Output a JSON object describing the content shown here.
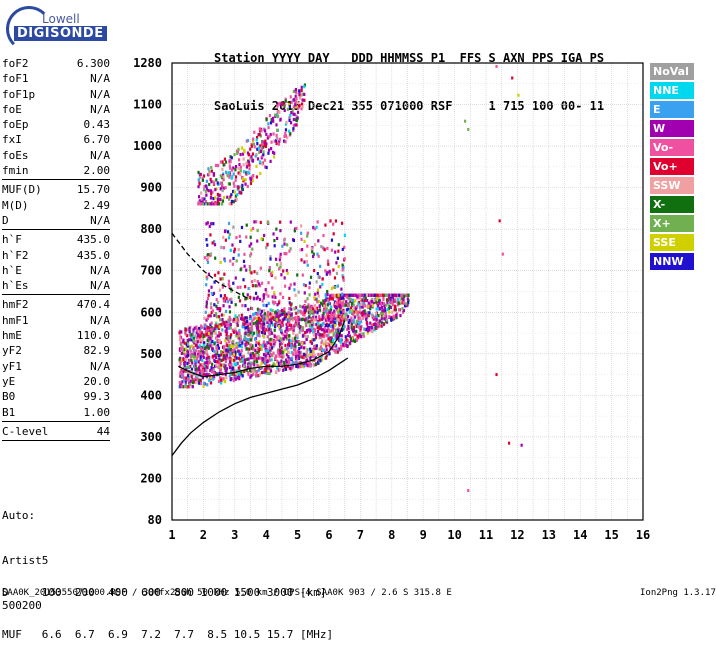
{
  "logo": {
    "line1": "Lowell",
    "line2": "DIGISONDE"
  },
  "header": {
    "labels": "Station YYYY DAY   DDD HHMMSS P1  FFS S AXN PPS IGA PS",
    "values": "SaoLuis 2015 Dec21 355 071000 RSF     1 715 100 00- 11"
  },
  "params": [
    {
      "name": "foF2",
      "value": "6.300"
    },
    {
      "name": "foF1",
      "value": "N/A"
    },
    {
      "name": "foF1p",
      "value": "N/A"
    },
    {
      "name": "foE",
      "value": "N/A"
    },
    {
      "name": "foEp",
      "value": "0.43"
    },
    {
      "name": "fxI",
      "value": "6.70"
    },
    {
      "name": "foEs",
      "value": "N/A"
    },
    {
      "name": "fmin",
      "value": "2.00"
    },
    {
      "sep": true
    },
    {
      "name": "MUF(D)",
      "value": "15.70"
    },
    {
      "name": "M(D)",
      "value": "2.49"
    },
    {
      "name": "D",
      "value": "N/A"
    },
    {
      "sep": true
    },
    {
      "name": "h`F",
      "value": "435.0"
    },
    {
      "name": "h`F2",
      "value": "435.0"
    },
    {
      "name": "h`E",
      "value": "N/A"
    },
    {
      "name": "h`Es",
      "value": "N/A"
    },
    {
      "sep": true
    },
    {
      "name": "hmF2",
      "value": "470.4"
    },
    {
      "name": "hmF1",
      "value": "N/A"
    },
    {
      "name": "hmE",
      "value": "110.0"
    },
    {
      "name": "yF2",
      "value": "82.9"
    },
    {
      "name": "yF1",
      "value": "N/A"
    },
    {
      "name": "yE",
      "value": "20.0"
    },
    {
      "name": "B0",
      "value": "99.3"
    },
    {
      "name": "B1",
      "value": "1.00"
    },
    {
      "sep": true
    },
    {
      "name": "C-level",
      "value": "44"
    },
    {
      "sep": true
    }
  ],
  "auto": {
    "line1": "Auto:",
    "line2": "Artist5",
    "line3": "500200"
  },
  "legend": [
    {
      "label": "NoVal",
      "color": "#a0a0a0"
    },
    {
      "label": "NNE",
      "color": "#00d8f0"
    },
    {
      "label": "E",
      "color": "#3aa0f0"
    },
    {
      "label": "W",
      "color": "#a000b0"
    },
    {
      "label": "Vo-",
      "color": "#f050a0"
    },
    {
      "label": "Vo+",
      "color": "#e00030"
    },
    {
      "label": "SSW",
      "color": "#f0a0a0"
    },
    {
      "label": "X-",
      "color": "#107010"
    },
    {
      "label": "X+",
      "color": "#70b050"
    },
    {
      "label": "SSE",
      "color": "#d0d000"
    },
    {
      "label": "NNW",
      "color": "#2010d0"
    }
  ],
  "distance_table": {
    "row1": "D     100  200  400  600  800 1000 1500 3000 [km]",
    "row2": "MUF   6.6  6.7  6.9  7.2  7.7  8.5 10.5 15.7 [MHz]"
  },
  "footer": {
    "left": "SAA0K_2015355071000.RSF / 300fx256h 50 kHz 5.0 km / DPS-4 SAA0K 903 / 2.6 S 315.8 E",
    "right": "Ion2Png 1.3.17"
  },
  "chart_data": {
    "type": "scatter",
    "xlim": [
      1,
      16
    ],
    "ylim_labels": [
      "80",
      "200",
      "300",
      "400",
      "500",
      "600",
      "700",
      "800",
      "900",
      "1000",
      "1100",
      "1280"
    ],
    "x_ticks": [
      "1",
      "2",
      "3",
      "4",
      "5",
      "6",
      "7",
      "8",
      "9",
      "10",
      "11",
      "12",
      "13",
      "14",
      "15",
      "16"
    ],
    "y_ticks": [
      80,
      200,
      300,
      400,
      500,
      600,
      700,
      800,
      900,
      1000,
      1100,
      1280
    ],
    "xlabel": "",
    "ylabel": "",
    "grid": true,
    "true_height_profile": [
      [
        1.0,
        255
      ],
      [
        1.3,
        285
      ],
      [
        1.6,
        310
      ],
      [
        2.0,
        335
      ],
      [
        2.5,
        360
      ],
      [
        3.0,
        380
      ],
      [
        3.5,
        395
      ],
      [
        4.0,
        405
      ],
      [
        4.5,
        415
      ],
      [
        5.0,
        425
      ],
      [
        5.5,
        440
      ],
      [
        6.0,
        460
      ],
      [
        6.3,
        475
      ],
      [
        6.6,
        490
      ]
    ],
    "virtual_height_trace": [
      [
        1.2,
        470
      ],
      [
        1.6,
        455
      ],
      [
        2.0,
        445
      ],
      [
        2.5,
        450
      ],
      [
        3.0,
        455
      ],
      [
        3.5,
        465
      ],
      [
        4.0,
        470
      ],
      [
        4.5,
        470
      ],
      [
        5.0,
        475
      ],
      [
        5.5,
        485
      ],
      [
        6.0,
        505
      ],
      [
        6.3,
        540
      ],
      [
        6.5,
        580
      ]
    ],
    "dashed_trace": [
      [
        1.0,
        790
      ],
      [
        1.5,
        740
      ],
      [
        2.0,
        700
      ],
      [
        2.5,
        670
      ],
      [
        3.0,
        650
      ],
      [
        3.5,
        630
      ]
    ],
    "echo_regions": [
      {
        "xr": [
          1.2,
          8.5
        ],
        "yr": [
          420,
          640
        ],
        "n": 2600
      },
      {
        "xr": [
          2.0,
          6.5
        ],
        "yr": [
          580,
          820
        ],
        "n": 500
      },
      {
        "xr": [
          1.8,
          5.2
        ],
        "yr": [
          860,
          1200
        ],
        "n": 420
      }
    ],
    "scattered_points": [
      [
        10.3,
        1060
      ],
      [
        10.4,
        1040
      ],
      [
        11.3,
        1265
      ],
      [
        11.8,
        1215
      ],
      [
        12.0,
        1140
      ],
      [
        11.4,
        820
      ],
      [
        11.5,
        740
      ],
      [
        11.7,
        285
      ],
      [
        12.1,
        280
      ],
      [
        10.4,
        165
      ],
      [
        11.3,
        450
      ]
    ]
  }
}
